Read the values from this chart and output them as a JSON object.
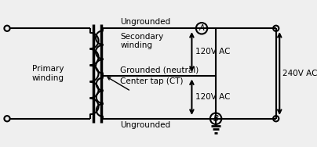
{
  "bg_color": "#efefef",
  "line_color": "#000000",
  "fig_width": 4.04,
  "fig_height": 1.88,
  "dpi": 100,
  "labels": {
    "primary_winding": "Primary\nwinding",
    "secondary_winding": "Secondary\nwinding",
    "grounded_neutral": "Grounded (neutral)",
    "center_tap": "Center tap (CT)",
    "ungrounded_top": "Ungrounded",
    "ungrounded_bot": "Ungrounded",
    "label_A": "A",
    "label_B": "B",
    "v120_top": "120V AC",
    "v120_bot": "120V AC",
    "v240": "240V AC"
  },
  "font_size": 7.5
}
